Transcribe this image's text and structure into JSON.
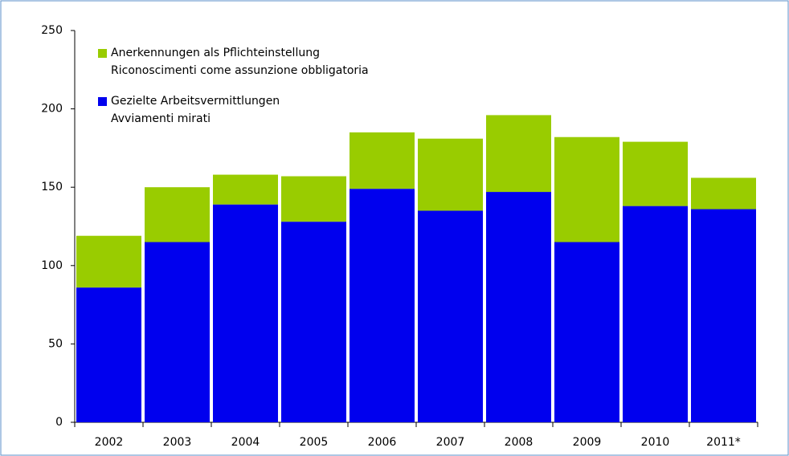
{
  "chart_data": {
    "type": "stacked_bar",
    "categories": [
      "2002",
      "2003",
      "2004",
      "2005",
      "2006",
      "2007",
      "2008",
      "2009",
      "2010",
      "2011*"
    ],
    "series": [
      {
        "name": [
          "Gezielte Arbeitsvermittlungen",
          "Avviamenti mirati"
        ],
        "color": "#0000ee",
        "values": [
          86,
          115,
          139,
          128,
          149,
          135,
          147,
          115,
          138,
          136
        ]
      },
      {
        "name": [
          "Anerkennungen als Pflichteinstellung",
          "Riconoscimenti come assunzione obbligatoria"
        ],
        "color": "#99cc00",
        "values": [
          33,
          35,
          19,
          29,
          36,
          46,
          49,
          67,
          41,
          20
        ]
      }
    ],
    "ylim": [
      0,
      250
    ],
    "yticks": [
      0,
      50,
      100,
      150,
      200,
      250
    ],
    "grid": false
  }
}
